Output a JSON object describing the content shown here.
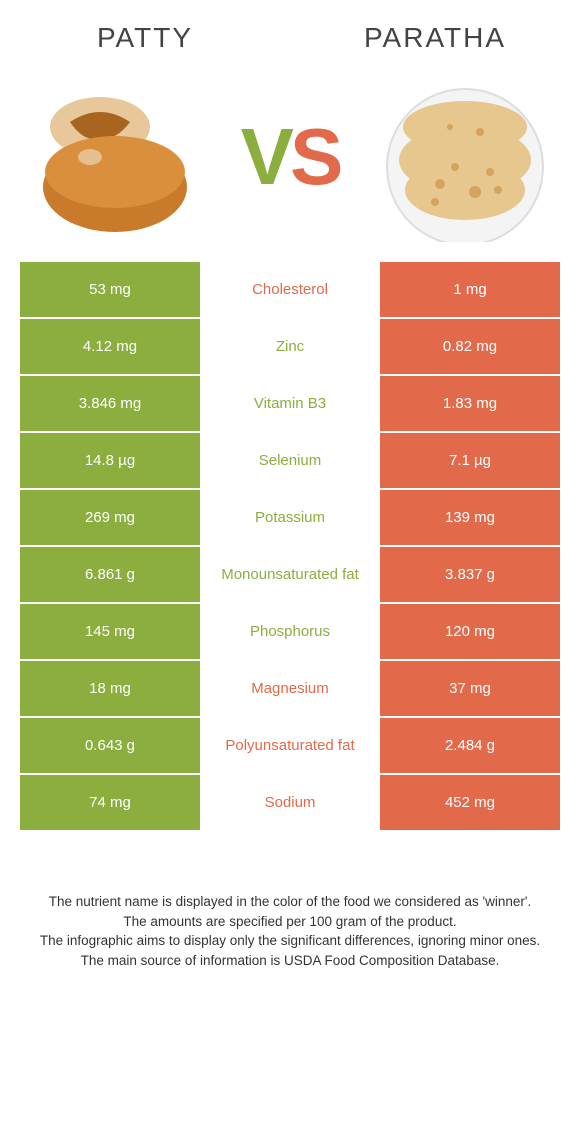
{
  "header": {
    "left_title": "PATTY",
    "right_title": "PARATHA"
  },
  "vs": {
    "v": "V",
    "s": "S"
  },
  "colors": {
    "left": "#8cae3e",
    "right": "#e2694a",
    "background": "#ffffff",
    "text": "#333333"
  },
  "table": {
    "left_bg": "#8cae3e",
    "right_bg": "#e2694a",
    "rows": [
      {
        "left": "53 mg",
        "label": "Cholesterol",
        "right": "1 mg",
        "winner": "right"
      },
      {
        "left": "4.12 mg",
        "label": "Zinc",
        "right": "0.82 mg",
        "winner": "left"
      },
      {
        "left": "3.846 mg",
        "label": "Vitamin B3",
        "right": "1.83 mg",
        "winner": "left"
      },
      {
        "left": "14.8 µg",
        "label": "Selenium",
        "right": "7.1 µg",
        "winner": "left"
      },
      {
        "left": "269 mg",
        "label": "Potassium",
        "right": "139 mg",
        "winner": "left"
      },
      {
        "left": "6.861 g",
        "label": "Monounsaturated fat",
        "right": "3.837 g",
        "winner": "left"
      },
      {
        "left": "145 mg",
        "label": "Phosphorus",
        "right": "120 mg",
        "winner": "left"
      },
      {
        "left": "18 mg",
        "label": "Magnesium",
        "right": "37 mg",
        "winner": "right"
      },
      {
        "left": "0.643 g",
        "label": "Polyunsaturated fat",
        "right": "2.484 g",
        "winner": "right"
      },
      {
        "left": "74 mg",
        "label": "Sodium",
        "right": "452 mg",
        "winner": "right"
      }
    ]
  },
  "footer": {
    "line1": "The nutrient name is displayed in the color of the food we considered as 'winner'.",
    "line2": "The amounts are specified per 100 gram of the product.",
    "line3": "The infographic aims to display only the significant differences, ignoring minor ones.",
    "line4": "The main source of information is USDA Food Composition Database."
  },
  "typography": {
    "header_fontsize": 28,
    "vs_fontsize": 80,
    "cell_fontsize": 15,
    "footer_fontsize": 13.5
  }
}
